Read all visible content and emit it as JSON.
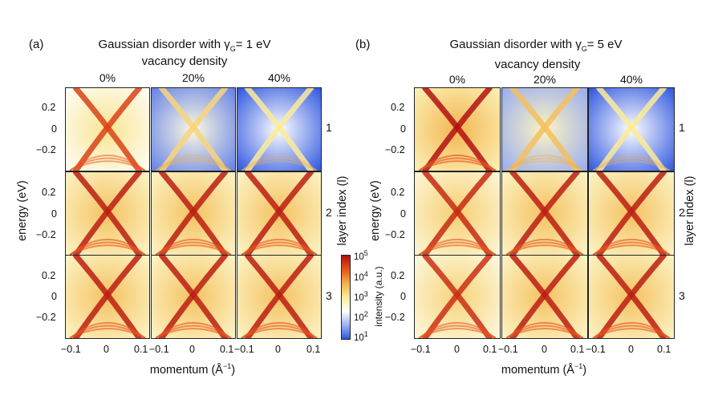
{
  "figure": {
    "a": {
      "label": "(a)",
      "title_prefix": "Gaussian disorder with γ",
      "title_sub": "G",
      "title_suffix": "= 1 eV",
      "subtitle": "vacancy density",
      "columns": [
        "0%",
        "20%",
        "40%"
      ]
    },
    "b": {
      "label": "(b)",
      "title_prefix": "Gaussian disorder with γ",
      "title_sub": "G",
      "title_suffix": "= 5 eV",
      "subtitle": "vacancy density",
      "columns": [
        "0%",
        "20%",
        "40%"
      ]
    },
    "y_ticks": [
      "0.2",
      "0",
      "−0.2"
    ],
    "x_ticks": [
      "−0.1",
      "0",
      "0.1"
    ],
    "ylabel": "energy (eV)",
    "xlabel_main": "momentum (Å",
    "xlabel_sup": "−1",
    "xlabel_close": ")",
    "row_label": "layer index (l)",
    "rows": [
      "1",
      "2",
      "3"
    ],
    "colorbar": {
      "label": "intensity (a.u.)",
      "ticks": [
        {
          "base": "10",
          "exp": "5"
        },
        {
          "base": "10",
          "exp": "4"
        },
        {
          "base": "10",
          "exp": "3"
        },
        {
          "base": "10",
          "exp": "2"
        },
        {
          "base": "10",
          "exp": "1"
        }
      ],
      "colors": [
        "#b01010",
        "#e8541a",
        "#f3b04a",
        "#faeb9a",
        "#ffffff",
        "#9fb3ee",
        "#2f57df"
      ]
    },
    "panels": {
      "a": [
        [
          0.55,
          0.15,
          0.0
        ],
        [
          0.85,
          0.85,
          0.85
        ],
        [
          0.85,
          0.85,
          0.85
        ]
      ],
      "b": [
        [
          0.95,
          0.3,
          0.0
        ],
        [
          0.75,
          0.85,
          0.85
        ],
        [
          0.7,
          0.85,
          0.85
        ]
      ]
    }
  }
}
